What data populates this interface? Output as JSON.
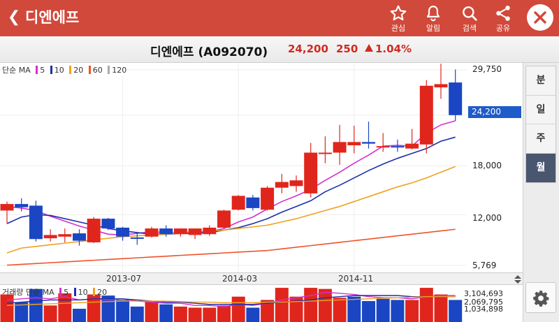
{
  "header": {
    "back_icon": "chevron-left-icon",
    "title": "디엔에프",
    "actions": [
      {
        "icon": "star-icon",
        "label": "관심"
      },
      {
        "icon": "bell-icon",
        "label": "알림"
      },
      {
        "icon": "search-icon",
        "label": "검색"
      },
      {
        "icon": "share-icon",
        "label": "공유"
      }
    ],
    "close_icon": "close-icon",
    "bg_color": "#d1493b"
  },
  "quote": {
    "name": "디엔에프 (A092070)",
    "price": "24,200",
    "change": "250",
    "change_pct": "1.04%",
    "direction": "up",
    "color": "#d12a20"
  },
  "price_legend": {
    "prefix": "단순 MA",
    "items": [
      {
        "label": "5",
        "color": "#d52fcf"
      },
      {
        "label": "10",
        "color": "#1d2fa8"
      },
      {
        "label": "20",
        "color": "#f0a020"
      },
      {
        "label": "60",
        "color": "#f0522a"
      },
      {
        "label": "120",
        "color": "#aaaaaa"
      }
    ]
  },
  "volume_legend": {
    "prefix": "거래량 단순 MA",
    "items": [
      {
        "label": "5",
        "color": "#d52fcf"
      },
      {
        "label": "10",
        "color": "#1d2fa8"
      },
      {
        "label": "20",
        "color": "#f0a020"
      }
    ]
  },
  "current_price_tag": "24,200",
  "y_labels": [
    "29,750",
    "24,200",
    "18,000",
    "12,000",
    "5,769"
  ],
  "volume_labels": [
    "3,104,693",
    "2,069,795",
    "1,034,898"
  ],
  "x_labels": [
    "2013-07",
    "2014-03",
    "2014-11"
  ],
  "periods": [
    {
      "label": "분",
      "active": false
    },
    {
      "label": "일",
      "active": false
    },
    {
      "label": "주",
      "active": false
    },
    {
      "label": "월",
      "active": true
    }
  ],
  "settings_icon": "gear-icon",
  "chart_data": {
    "type": "candlestick",
    "interval": "monthly",
    "ylim": [
      5769,
      29750
    ],
    "up_color": "#e0261c",
    "down_color": "#1a46c4",
    "candles": [
      {
        "o": 12500,
        "h": 13600,
        "l": 10900,
        "c": 13300
      },
      {
        "o": 13300,
        "h": 14000,
        "l": 12400,
        "c": 12900
      },
      {
        "o": 13100,
        "h": 13700,
        "l": 8700,
        "c": 9000
      },
      {
        "o": 9100,
        "h": 10200,
        "l": 8700,
        "c": 9500
      },
      {
        "o": 9300,
        "h": 10300,
        "l": 8600,
        "c": 9600
      },
      {
        "o": 9700,
        "h": 10200,
        "l": 8200,
        "c": 8800
      },
      {
        "o": 8600,
        "h": 11700,
        "l": 8500,
        "c": 11500
      },
      {
        "o": 11500,
        "h": 11600,
        "l": 10100,
        "c": 10300
      },
      {
        "o": 10400,
        "h": 10500,
        "l": 8800,
        "c": 9300
      },
      {
        "o": 9200,
        "h": 9800,
        "l": 8300,
        "c": 9100
      },
      {
        "o": 9300,
        "h": 10500,
        "l": 9200,
        "c": 10300
      },
      {
        "o": 10300,
        "h": 10700,
        "l": 9300,
        "c": 9600
      },
      {
        "o": 9600,
        "h": 10300,
        "l": 9300,
        "c": 10300
      },
      {
        "o": 9500,
        "h": 10300,
        "l": 9000,
        "c": 10300
      },
      {
        "o": 9600,
        "h": 10700,
        "l": 9400,
        "c": 10400
      },
      {
        "o": 10400,
        "h": 12600,
        "l": 10300,
        "c": 12500
      },
      {
        "o": 12600,
        "h": 14400,
        "l": 12500,
        "c": 14300
      },
      {
        "o": 14100,
        "h": 14400,
        "l": 12500,
        "c": 12800
      },
      {
        "o": 12600,
        "h": 15500,
        "l": 12500,
        "c": 15300
      },
      {
        "o": 15300,
        "h": 17000,
        "l": 14600,
        "c": 16000
      },
      {
        "o": 15500,
        "h": 16800,
        "l": 14800,
        "c": 16200
      },
      {
        "o": 14600,
        "h": 20800,
        "l": 14100,
        "c": 19600
      },
      {
        "o": 19500,
        "h": 21600,
        "l": 18300,
        "c": 19600
      },
      {
        "o": 19600,
        "h": 23000,
        "l": 18100,
        "c": 20900
      },
      {
        "o": 20500,
        "h": 22900,
        "l": 19500,
        "c": 20900
      },
      {
        "o": 20900,
        "h": 23400,
        "l": 20100,
        "c": 20700
      },
      {
        "o": 20400,
        "h": 22000,
        "l": 19700,
        "c": 20400
      },
      {
        "o": 20400,
        "h": 21200,
        "l": 19700,
        "c": 20300
      },
      {
        "o": 20100,
        "h": 22500,
        "l": 20000,
        "c": 20700
      },
      {
        "o": 20600,
        "h": 28500,
        "l": 19500,
        "c": 27800
      },
      {
        "o": 27600,
        "h": 30500,
        "l": 26200,
        "c": 28000
      },
      {
        "o": 28200,
        "h": 29800,
        "l": 23500,
        "c": 24200
      }
    ],
    "ma": [
      {
        "period": 5,
        "color": "#d52fcf",
        "values": [
          13000,
          12800,
          12500,
          11800,
          11200,
          10600,
          10100,
          9600,
          9500,
          9700,
          9900,
          9800,
          9700,
          9700,
          9900,
          10300,
          11100,
          11700,
          12700,
          13600,
          14300,
          15100,
          16200,
          17200,
          18300,
          19300,
          20400,
          20500,
          20400,
          22000,
          23000,
          23500
        ]
      },
      {
        "period": 10,
        "color": "#1d2fa8",
        "values": [
          10900,
          11700,
          12000,
          11900,
          11500,
          11100,
          10700,
          10300,
          10000,
          9800,
          9600,
          9600,
          9700,
          9700,
          9800,
          10100,
          10400,
          10900,
          11500,
          12300,
          13000,
          13700,
          14800,
          15600,
          16500,
          17400,
          18200,
          18900,
          19500,
          20100,
          21000,
          21500
        ]
      },
      {
        "period": 20,
        "color": "#f0a020",
        "values": [
          7300,
          7900,
          8100,
          8300,
          8500,
          8700,
          8900,
          9100,
          9300,
          9400,
          9500,
          9600,
          9800,
          9900,
          10000,
          10100,
          10300,
          10500,
          10700,
          11100,
          11500,
          12000,
          12500,
          13000,
          13600,
          14200,
          14800,
          15400,
          15900,
          16500,
          17200,
          17900
        ]
      },
      {
        "period": 60,
        "color": "#f0522a",
        "values": [
          5800,
          5900,
          6000,
          6100,
          6200,
          6300,
          6400,
          6500,
          6600,
          6700,
          6800,
          6900,
          7000,
          7100,
          7200,
          7300,
          7400,
          7500,
          7600,
          7800,
          8000,
          8200,
          8400,
          8600,
          8800,
          9000,
          9200,
          9400,
          9600,
          9800,
          10000,
          10200
        ]
      }
    ],
    "volume": {
      "ylim": [
        0,
        3104693
      ],
      "values": [
        2500000,
        1800000,
        3000000,
        1500000,
        2600000,
        1200000,
        2500000,
        2400000,
        2000000,
        1400000,
        1900000,
        1600000,
        1400000,
        1300000,
        1300000,
        1500000,
        2300000,
        1300000,
        2000000,
        3100000,
        2300000,
        3100000,
        3000000,
        2200000,
        2300000,
        1900000,
        2100000,
        2000000,
        2000000,
        3100000,
        2500000,
        2000000
      ],
      "colors": [
        "#e0261c",
        "#1a46c4",
        "#1a46c4",
        "#e0261c",
        "#e0261c",
        "#1a46c4",
        "#e0261c",
        "#1a46c4",
        "#1a46c4",
        "#1a46c4",
        "#e0261c",
        "#1a46c4",
        "#e0261c",
        "#e0261c",
        "#e0261c",
        "#e0261c",
        "#e0261c",
        "#1a46c4",
        "#e0261c",
        "#e0261c",
        "#e0261c",
        "#e0261c",
        "#e0261c",
        "#e0261c",
        "#1a46c4",
        "#1a46c4",
        "#1a46c4",
        "#1a46c4",
        "#e0261c",
        "#e0261c",
        "#e0261c",
        "#1a46c4"
      ],
      "ma": [
        {
          "period": 5,
          "color": "#d52fcf",
          "values": [
            2000000,
            2100000,
            2200000,
            2100000,
            2300000,
            2000000,
            2100000,
            2000000,
            2100000,
            1900000,
            1800000,
            1700000,
            1700000,
            1500000,
            1500000,
            1400000,
            1600000,
            1500000,
            1700000,
            2000000,
            2200000,
            2400000,
            2700000,
            2600000,
            2500000,
            2300000,
            2200000,
            2200000,
            2100000,
            2300000,
            2400000,
            2400000
          ]
        },
        {
          "period": 10,
          "color": "#1d2fa8",
          "values": [
            1700000,
            1800000,
            1900000,
            2000000,
            2000000,
            2000000,
            2100000,
            2100000,
            2100000,
            2000000,
            1900000,
            1800000,
            1800000,
            1700000,
            1600000,
            1600000,
            1600000,
            1600000,
            1700000,
            1800000,
            1900000,
            2000000,
            2200000,
            2300000,
            2400000,
            2400000,
            2400000,
            2400000,
            2300000,
            2300000,
            2300000,
            2300000
          ]
        },
        {
          "period": 20,
          "color": "#f0a020",
          "values": [
            1500000,
            1550000,
            1600000,
            1650000,
            1700000,
            1750000,
            1800000,
            1850000,
            1900000,
            1900000,
            1900000,
            1900000,
            1850000,
            1800000,
            1800000,
            1750000,
            1750000,
            1750000,
            1800000,
            1800000,
            1850000,
            1900000,
            1950000,
            2000000,
            2050000,
            2100000,
            2150000,
            2200000,
            2250000,
            2300000,
            2300000,
            2300000
          ]
        }
      ]
    },
    "x_ticks": [
      {
        "label": "2013-07",
        "index": 8
      },
      {
        "label": "2014-03",
        "index": 16
      },
      {
        "label": "2014-11",
        "index": 24
      }
    ]
  }
}
